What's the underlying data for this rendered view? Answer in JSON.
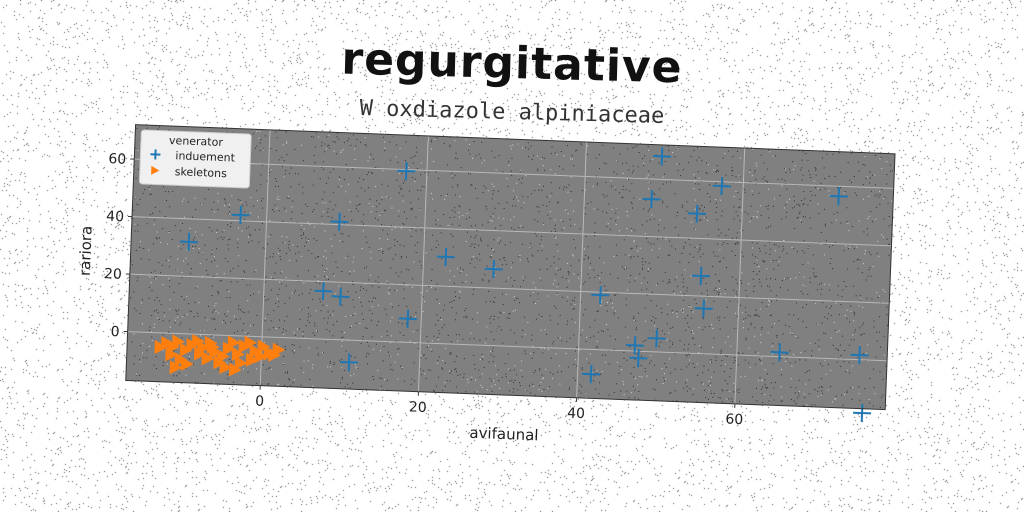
{
  "title": "regurgitative",
  "subtitle": "W oxdiazole alpiniaceae",
  "chart_data": {
    "type": "scatter",
    "xlabel": "avifaunal",
    "ylabel": "rariora",
    "xlim": [
      -17,
      79
    ],
    "ylim": [
      -17,
      72
    ],
    "xticks": [
      0,
      20,
      40,
      60
    ],
    "yticks": [
      0,
      20,
      40,
      60
    ],
    "grid": true,
    "background": "#808080",
    "legend": {
      "title": "venerator",
      "placement": "top-left"
    },
    "series": [
      {
        "name": "induement",
        "marker": "plus",
        "color": "#1f77b4",
        "points": [
          [
            -9.7,
            32
          ],
          [
            -3.3,
            42
          ],
          [
            9.2,
            41
          ],
          [
            17.4,
            59.5
          ],
          [
            7.5,
            16.7
          ],
          [
            9.7,
            15
          ],
          [
            18.3,
            8.2
          ],
          [
            11.1,
            -7.7
          ],
          [
            22.8,
            30.2
          ],
          [
            28.9,
            26.6
          ],
          [
            42.5,
            19
          ],
          [
            48.5,
            53
          ],
          [
            49.6,
            68
          ],
          [
            54.3,
            48.6
          ],
          [
            57.3,
            58.5
          ],
          [
            55.1,
            27
          ],
          [
            55.6,
            15.7
          ],
          [
            47.1,
            2
          ],
          [
            47.6,
            -2.4
          ],
          [
            49.8,
            4.7
          ],
          [
            41.7,
            -8.6
          ],
          [
            65.4,
            1.5
          ],
          [
            72.1,
            56.5
          ],
          [
            75.5,
            1.6
          ],
          [
            76.1,
            -18.5
          ]
        ]
      },
      {
        "name": "skeletons",
        "marker": "triangle-right",
        "color": "#ff7f0e",
        "points": [
          [
            -12.8,
            -5
          ],
          [
            -12,
            -3.5
          ],
          [
            -11.2,
            -4.6
          ],
          [
            -10.6,
            -2.8
          ],
          [
            -9.6,
            -5.6
          ],
          [
            -8.8,
            -3.8
          ],
          [
            -8.1,
            -2.4
          ],
          [
            -11.4,
            -7.4
          ],
          [
            -10.2,
            -9
          ],
          [
            -9.4,
            -10.5
          ],
          [
            -10.8,
            -11.8
          ],
          [
            -7.4,
            -4.6
          ],
          [
            -6.5,
            -2.9
          ],
          [
            -5.9,
            -6
          ],
          [
            -6.8,
            -8.3
          ],
          [
            -5.3,
            -9.5
          ],
          [
            -4.9,
            -7.3
          ],
          [
            -4.2,
            -4.6
          ],
          [
            -3.6,
            -2.4
          ],
          [
            -3,
            -6.4
          ],
          [
            -2.2,
            -3.6
          ],
          [
            -1.5,
            -2.2
          ],
          [
            -0.8,
            -5.2
          ],
          [
            0.2,
            -3.4
          ],
          [
            1,
            -5.8
          ],
          [
            2.1,
            -4.3
          ],
          [
            -4.5,
            -11.1
          ],
          [
            -3.3,
            -11.8
          ],
          [
            -2.6,
            -9.4
          ],
          [
            -1.2,
            -8.2
          ],
          [
            -0.1,
            -6.8
          ],
          [
            1.6,
            -6.2
          ],
          [
            -7.8,
            -6.7
          ],
          [
            -6.2,
            -4.2
          ]
        ]
      }
    ]
  }
}
